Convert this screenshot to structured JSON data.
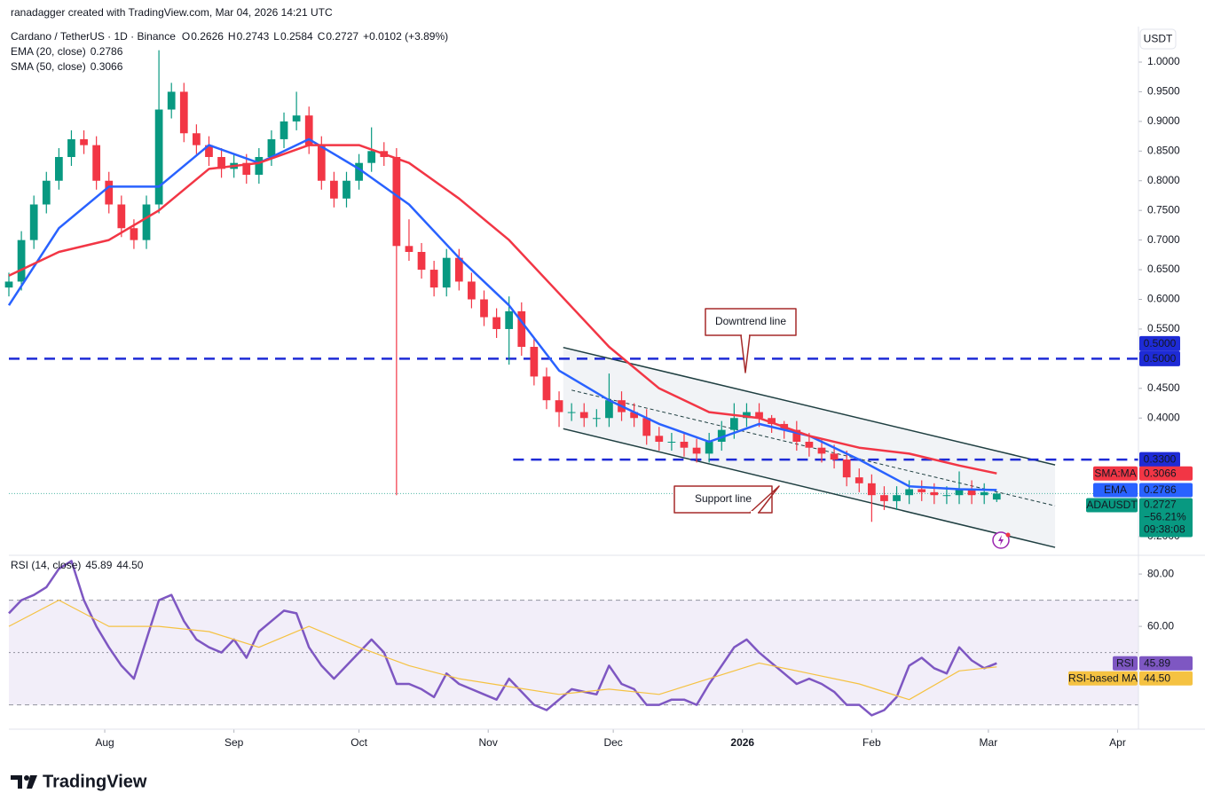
{
  "header": {
    "attribution": "ranadagger created with TradingView.com, Mar 04, 2026 14:21 UTC"
  },
  "footer": {
    "brand": "TradingView"
  },
  "chart_data": [
    {
      "type": "candlestick",
      "title": "Cardano / TetherUS · 1D · Binance",
      "ohlc_keys": [
        "O",
        "H",
        "L",
        "C"
      ],
      "change": "+0.0102 (+3.89%)",
      "axis_unit": "USDT",
      "symbol": "ADAUSDT",
      "change_pct": "−56.21%",
      "countdown": "09:38:08",
      "up_color": "#089981",
      "down_color": "#f23645",
      "x": [
        0,
        3,
        6,
        9,
        12,
        15,
        18,
        21,
        24,
        27,
        30,
        33,
        36,
        39,
        42,
        45,
        48,
        51,
        54,
        57,
        60,
        63,
        66,
        69,
        72,
        75,
        78,
        81,
        84,
        87,
        90,
        93,
        96,
        99,
        102,
        105,
        108,
        111,
        114,
        117,
        120,
        123,
        126,
        129,
        132,
        135,
        138,
        141,
        144,
        147,
        150,
        153,
        156,
        159,
        162,
        165,
        168,
        171,
        174,
        177,
        180,
        183,
        186,
        189,
        192,
        195,
        198,
        201,
        204,
        207,
        210,
        213,
        216,
        219,
        222,
        225,
        228,
        231,
        234,
        237
      ],
      "open": [
        0.62,
        0.63,
        0.7,
        0.76,
        0.8,
        0.84,
        0.87,
        0.86,
        0.8,
        0.76,
        0.72,
        0.7,
        0.76,
        0.92,
        0.95,
        0.88,
        0.86,
        0.84,
        0.82,
        0.83,
        0.81,
        0.84,
        0.87,
        0.9,
        0.91,
        0.86,
        0.8,
        0.77,
        0.8,
        0.83,
        0.85,
        0.84,
        0.69,
        0.68,
        0.65,
        0.62,
        0.67,
        0.63,
        0.6,
        0.57,
        0.55,
        0.58,
        0.52,
        0.47,
        0.43,
        0.41,
        0.41,
        0.4,
        0.4,
        0.43,
        0.41,
        0.4,
        0.37,
        0.36,
        0.36,
        0.35,
        0.34,
        0.36,
        0.38,
        0.4,
        0.41,
        0.4,
        0.39,
        0.38,
        0.36,
        0.35,
        0.34,
        0.33,
        0.3,
        0.29,
        0.27,
        0.26,
        0.27,
        0.28,
        0.275,
        0.27,
        0.27,
        0.28,
        0.27,
        0.2626
      ],
      "high": [
        0.645,
        0.715,
        0.775,
        0.815,
        0.855,
        0.885,
        0.885,
        0.875,
        0.815,
        0.775,
        0.735,
        0.775,
        1.02,
        0.965,
        0.965,
        0.895,
        0.875,
        0.855,
        0.845,
        0.845,
        0.855,
        0.885,
        0.915,
        0.95,
        0.925,
        0.875,
        0.815,
        0.815,
        0.845,
        0.89,
        0.865,
        0.855,
        0.735,
        0.695,
        0.665,
        0.685,
        0.685,
        0.645,
        0.615,
        0.585,
        0.605,
        0.595,
        0.535,
        0.485,
        0.445,
        0.425,
        0.425,
        0.415,
        0.475,
        0.445,
        0.425,
        0.415,
        0.385,
        0.375,
        0.375,
        0.365,
        0.375,
        0.395,
        0.425,
        0.425,
        0.425,
        0.405,
        0.395,
        0.395,
        0.375,
        0.365,
        0.355,
        0.345,
        0.315,
        0.305,
        0.285,
        0.285,
        0.295,
        0.295,
        0.29,
        0.285,
        0.31,
        0.295,
        0.29,
        0.2743
      ],
      "low": [
        0.605,
        0.615,
        0.685,
        0.745,
        0.785,
        0.825,
        0.845,
        0.785,
        0.745,
        0.705,
        0.685,
        0.685,
        0.745,
        0.905,
        0.865,
        0.845,
        0.825,
        0.805,
        0.805,
        0.795,
        0.795,
        0.825,
        0.855,
        0.885,
        0.845,
        0.785,
        0.755,
        0.755,
        0.785,
        0.815,
        0.825,
        0.27,
        0.665,
        0.635,
        0.605,
        0.605,
        0.615,
        0.585,
        0.555,
        0.535,
        0.49,
        0.505,
        0.455,
        0.415,
        0.385,
        0.395,
        0.385,
        0.385,
        0.385,
        0.395,
        0.385,
        0.355,
        0.345,
        0.345,
        0.335,
        0.325,
        0.325,
        0.345,
        0.365,
        0.385,
        0.385,
        0.375,
        0.365,
        0.345,
        0.335,
        0.325,
        0.315,
        0.285,
        0.275,
        0.225,
        0.245,
        0.245,
        0.255,
        0.26,
        0.255,
        0.255,
        0.255,
        0.255,
        0.255,
        0.2584
      ],
      "close": [
        0.63,
        0.7,
        0.76,
        0.8,
        0.84,
        0.87,
        0.86,
        0.8,
        0.76,
        0.72,
        0.7,
        0.76,
        0.92,
        0.95,
        0.88,
        0.86,
        0.84,
        0.82,
        0.83,
        0.81,
        0.84,
        0.87,
        0.9,
        0.91,
        0.86,
        0.8,
        0.77,
        0.8,
        0.83,
        0.85,
        0.84,
        0.69,
        0.68,
        0.65,
        0.62,
        0.67,
        0.63,
        0.6,
        0.57,
        0.55,
        0.58,
        0.52,
        0.47,
        0.43,
        0.41,
        0.41,
        0.4,
        0.4,
        0.43,
        0.41,
        0.4,
        0.37,
        0.36,
        0.36,
        0.35,
        0.34,
        0.36,
        0.38,
        0.4,
        0.41,
        0.4,
        0.39,
        0.38,
        0.36,
        0.35,
        0.34,
        0.33,
        0.3,
        0.29,
        0.27,
        0.26,
        0.27,
        0.28,
        0.275,
        0.27,
        0.27,
        0.28,
        0.27,
        0.275,
        0.2727
      ],
      "series": [
        {
          "name": "EMA (20, close)",
          "badge": "EMA",
          "color": "#2962ff",
          "x": [
            0,
            12,
            24,
            36,
            48,
            60,
            72,
            84,
            96,
            108,
            120,
            132,
            144,
            156,
            168,
            180,
            192,
            204,
            216,
            228,
            237
          ],
          "values": [
            0.59,
            0.72,
            0.79,
            0.79,
            0.86,
            0.83,
            0.87,
            0.82,
            0.76,
            0.67,
            0.59,
            0.48,
            0.43,
            0.39,
            0.36,
            0.39,
            0.37,
            0.33,
            0.285,
            0.28,
            0.2786
          ]
        },
        {
          "name": "SMA (50, close)",
          "badge": "SMA:MA",
          "color": "#f23645",
          "x": [
            0,
            12,
            24,
            36,
            48,
            60,
            72,
            84,
            96,
            108,
            120,
            132,
            144,
            156,
            168,
            180,
            192,
            204,
            216,
            228,
            237
          ],
          "values": [
            0.64,
            0.68,
            0.7,
            0.75,
            0.82,
            0.83,
            0.86,
            0.86,
            0.83,
            0.77,
            0.7,
            0.61,
            0.52,
            0.45,
            0.41,
            0.4,
            0.37,
            0.35,
            0.34,
            0.32,
            0.3066
          ]
        }
      ],
      "levels": [
        {
          "value": 0.5,
          "label": "0.5000"
        },
        {
          "value": 0.33,
          "label": "0.3300"
        }
      ],
      "level_color": "#1e2bd6",
      "channel": {
        "color": "#1f3f41",
        "fill": "#eef1f4",
        "lines": [
          {
            "x": [
              133,
              251
            ],
            "y": [
              0.519,
              0.321
            ]
          },
          {
            "x": [
              133,
              251
            ],
            "y": [
              0.382,
              0.182
            ]
          },
          {
            "x": [
              135,
              251
            ],
            "y": [
              0.447,
              0.252
            ],
            "dashed": true
          }
        ]
      },
      "annotations": [
        "Downtrend line",
        "Support line"
      ],
      "xlim": [
        0,
        271
      ],
      "ylim": [
        0.1746,
        1.0598
      ],
      "yticks": [
        {
          "value": 1.0,
          "label": "1.0000"
        },
        {
          "value": 0.95,
          "label": "0.9500"
        },
        {
          "value": 0.9,
          "label": "0.9000"
        },
        {
          "value": 0.85,
          "label": "0.8500"
        },
        {
          "value": 0.8,
          "label": "0.8000"
        },
        {
          "value": 0.75,
          "label": "0.7500"
        },
        {
          "value": 0.7,
          "label": "0.7000"
        },
        {
          "value": 0.65,
          "label": "0.6500"
        },
        {
          "value": 0.6,
          "label": "0.6000"
        },
        {
          "value": 0.55,
          "label": "0.5500"
        },
        {
          "value": 0.45,
          "label": "0.4500"
        },
        {
          "value": 0.4,
          "label": "0.4000"
        },
        {
          "value": 0.2,
          "label": "0.2000"
        }
      ]
    },
    {
      "type": "line",
      "title": "RSI (14, close)",
      "band": [
        30,
        70
      ],
      "midline": 50,
      "band_color": "#7e57c2",
      "series": [
        {
          "name": "RSI",
          "color": "#7e57c2",
          "x": [
            0,
            3,
            6,
            9,
            12,
            15,
            18,
            21,
            24,
            27,
            30,
            33,
            36,
            39,
            42,
            45,
            48,
            51,
            54,
            57,
            60,
            63,
            66,
            69,
            72,
            75,
            78,
            81,
            84,
            87,
            90,
            93,
            96,
            99,
            102,
            105,
            108,
            111,
            114,
            117,
            120,
            123,
            126,
            129,
            132,
            135,
            138,
            141,
            144,
            147,
            150,
            153,
            156,
            159,
            162,
            165,
            168,
            171,
            174,
            177,
            180,
            183,
            186,
            189,
            192,
            195,
            198,
            201,
            204,
            207,
            210,
            213,
            216,
            219,
            222,
            225,
            228,
            231,
            234,
            237
          ],
          "values": [
            65,
            70,
            72,
            75,
            82,
            85,
            70,
            60,
            52,
            45,
            40,
            55,
            70,
            72,
            62,
            55,
            52,
            50,
            55,
            48,
            58,
            62,
            66,
            65,
            52,
            45,
            40,
            45,
            50,
            55,
            50,
            38,
            38,
            36,
            33,
            42,
            38,
            36,
            34,
            32,
            40,
            35,
            30,
            28,
            32,
            36,
            35,
            34,
            45,
            38,
            36,
            30,
            30,
            32,
            32,
            30,
            38,
            45,
            52,
            55,
            50,
            46,
            42,
            38,
            40,
            38,
            35,
            30,
            30,
            26,
            28,
            33,
            45,
            48,
            44,
            42,
            52,
            47,
            44,
            45.89
          ]
        },
        {
          "name": "RSI-based MA",
          "color": "#f5c242",
          "x": [
            0,
            12,
            24,
            36,
            48,
            60,
            72,
            84,
            96,
            108,
            120,
            132,
            144,
            156,
            168,
            180,
            192,
            204,
            216,
            228,
            237
          ],
          "values": [
            60,
            70,
            60,
            60,
            58,
            52,
            60,
            52,
            45,
            40,
            37,
            34,
            36,
            34,
            40,
            46,
            42,
            38,
            32,
            43,
            44.5
          ],
          "value_labels": [
            null,
            null,
            null,
            null,
            null,
            null,
            null,
            null,
            null,
            null,
            null,
            null,
            null,
            null,
            null,
            null,
            null,
            null,
            null,
            null,
            "44.50"
          ]
        }
      ],
      "xlim": [
        0,
        271
      ],
      "ylim": [
        21.4,
        85.8
      ],
      "yticks": [
        {
          "value": 80,
          "label": "80.00"
        },
        {
          "value": 60,
          "label": "60.00"
        }
      ],
      "xticks": [
        {
          "value": 23,
          "label": "Aug"
        },
        {
          "value": 54,
          "label": "Sep"
        },
        {
          "value": 84,
          "label": "Oct"
        },
        {
          "value": 115,
          "label": "Nov"
        },
        {
          "value": 145,
          "label": "Dec"
        },
        {
          "value": 176,
          "label": "2026"
        },
        {
          "value": 207,
          "label": "Feb"
        },
        {
          "value": 235,
          "label": "Mar"
        },
        {
          "value": 266,
          "label": "Apr"
        }
      ]
    }
  ]
}
